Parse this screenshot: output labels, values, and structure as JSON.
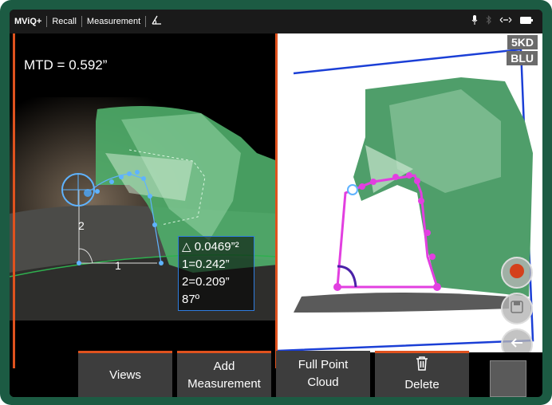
{
  "topbar": {
    "app": "MViQ+",
    "crumbs": [
      "Recall",
      "Measurement"
    ],
    "icon": "measure-angle-icon",
    "status_icons": [
      "microphone-icon",
      "bluetooth-icon",
      "link-icon",
      "battery-icon"
    ]
  },
  "left_view": {
    "mtd_label": "MTD = 0.592”",
    "labels": {
      "line1": "1",
      "line2": "2"
    },
    "measurement_box": {
      "area": "△ 0.0469”²",
      "line1": "1=0.242”",
      "line2": "2=0.209”",
      "angle": "87º"
    }
  },
  "right_view": {
    "probe_labels": [
      "5KD",
      "BLU"
    ],
    "side_buttons": [
      "record-icon",
      "save-icon",
      "back-icon"
    ]
  },
  "bottom": {
    "buttons": [
      {
        "lines": [
          "Views"
        ]
      },
      {
        "lines": [
          "Add",
          "Measurement"
        ]
      },
      {
        "lines": [
          "Full Point",
          "Cloud"
        ]
      },
      {
        "lines": [
          "Delete"
        ],
        "icon": "trash-icon"
      }
    ]
  },
  "colors": {
    "accent": "#e0521e",
    "frame": "#1c5b43",
    "measure": "#2f7de0",
    "overlay": "#e23fe0"
  }
}
